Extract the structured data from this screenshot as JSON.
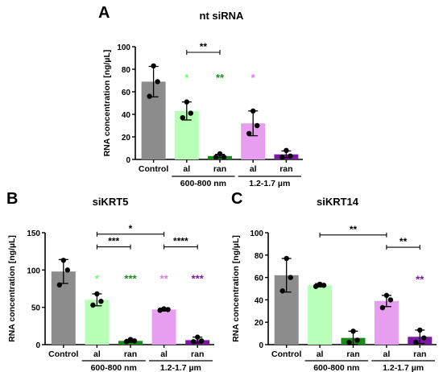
{
  "chart_data": [
    {
      "type": "bar",
      "panel_letter": "A",
      "title": "nt siRNA",
      "ylabel": "RNA concentration [ng/µL]",
      "ylim": [
        0,
        100
      ],
      "yticks": [
        0,
        20,
        40,
        60,
        80,
        100
      ],
      "categories": [
        "Control",
        "al",
        "ran",
        "al",
        "ran"
      ],
      "group_labels": [
        {
          "label": "600-800 nm",
          "from": 1,
          "to": 2
        },
        {
          "label": "1.2-1.7 µm",
          "from": 3,
          "to": 4
        }
      ],
      "colors": [
        "#8c8c8c",
        "#b8ffb8",
        "#1a8a1a",
        "#e89ef0",
        "#7a1aa0"
      ],
      "values": [
        69,
        43,
        3,
        32,
        4.5
      ],
      "errors": [
        13.5,
        8,
        1.5,
        11,
        3
      ],
      "points": [
        [
          83,
          56,
          69
        ],
        [
          51,
          37,
          41
        ],
        [
          5,
          2,
          2
        ],
        [
          43,
          23,
          30
        ],
        [
          8,
          2,
          3
        ]
      ],
      "significance_marks": [
        {
          "bar": 1,
          "label": "*",
          "y": 72,
          "color": "#7af27a"
        },
        {
          "bar": 2,
          "label": "**",
          "y": 72,
          "color": "#1a8a1a"
        },
        {
          "bar": 3,
          "label": "*",
          "y": 72,
          "color": "#d77be0"
        }
      ],
      "brackets": [
        {
          "from": 1,
          "to": 2,
          "label": "**",
          "y": 95
        }
      ]
    },
    {
      "type": "bar",
      "panel_letter": "B",
      "title": "siKRT5",
      "ylabel": "RNA concentration [ng/µL]",
      "ylim": [
        0,
        150
      ],
      "yticks": [
        0,
        50,
        100,
        150
      ],
      "categories": [
        "Control",
        "al",
        "ran",
        "al",
        "ran"
      ],
      "group_labels": [
        {
          "label": "600-800 nm",
          "from": 1,
          "to": 2
        },
        {
          "label": "1.2-1.7 µm",
          "from": 3,
          "to": 4
        }
      ],
      "colors": [
        "#8c8c8c",
        "#b8ffb8",
        "#1a8a1a",
        "#e89ef0",
        "#7a1aa0"
      ],
      "values": [
        98,
        60,
        5,
        47,
        6
      ],
      "errors": [
        16,
        8,
        2,
        2,
        4
      ],
      "points": [
        [
          113,
          80,
          100
        ],
        [
          68,
          53,
          58
        ],
        [
          7,
          4,
          5
        ],
        [
          48,
          46,
          47
        ],
        [
          10,
          4,
          5
        ]
      ],
      "significance_marks": [
        {
          "bar": 1,
          "label": "*",
          "y": 88,
          "color": "#7af27a"
        },
        {
          "bar": 2,
          "label": "***",
          "y": 88,
          "color": "#1a8a1a"
        },
        {
          "bar": 3,
          "label": "**",
          "y": 88,
          "color": "#d77be0"
        },
        {
          "bar": 4,
          "label": "***",
          "y": 88,
          "color": "#7a1aa0"
        }
      ],
      "brackets": [
        {
          "from": 1,
          "to": 3,
          "label": "*",
          "y": 148
        },
        {
          "from": 1,
          "to": 2,
          "label": "***",
          "y": 131
        },
        {
          "from": 3,
          "to": 4,
          "label": "****",
          "y": 131
        }
      ]
    },
    {
      "type": "bar",
      "panel_letter": "C",
      "title": "siKRT14",
      "ylabel": "RNA concentration [ng/µL]",
      "ylim": [
        0,
        100
      ],
      "yticks": [
        0,
        20,
        40,
        60,
        80,
        100
      ],
      "categories": [
        "Control",
        "al",
        "ran",
        "al",
        "ran"
      ],
      "group_labels": [
        {
          "label": "600-800 nm",
          "from": 1,
          "to": 2
        },
        {
          "label": "1.2-1.7 µm",
          "from": 3,
          "to": 4
        }
      ],
      "colors": [
        "#8c8c8c",
        "#b8ffb8",
        "#1a8a1a",
        "#e89ef0",
        "#7a1aa0"
      ],
      "values": [
        62,
        53,
        6,
        39,
        7
      ],
      "errors": [
        15,
        1.5,
        6,
        5,
        6
      ],
      "points": [
        [
          77,
          48,
          60
        ],
        [
          54,
          52,
          53
        ],
        [
          12,
          2,
          4
        ],
        [
          44,
          33,
          40
        ],
        [
          13,
          2,
          6
        ]
      ],
      "significance_marks": [
        {
          "bar": 4,
          "label": "**",
          "y": 58,
          "color": "#7a1aa0"
        }
      ],
      "brackets": [
        {
          "from": 1,
          "to": 3,
          "label": "**",
          "y": 98
        },
        {
          "from": 3,
          "to": 4,
          "label": "**",
          "y": 87
        }
      ]
    }
  ]
}
